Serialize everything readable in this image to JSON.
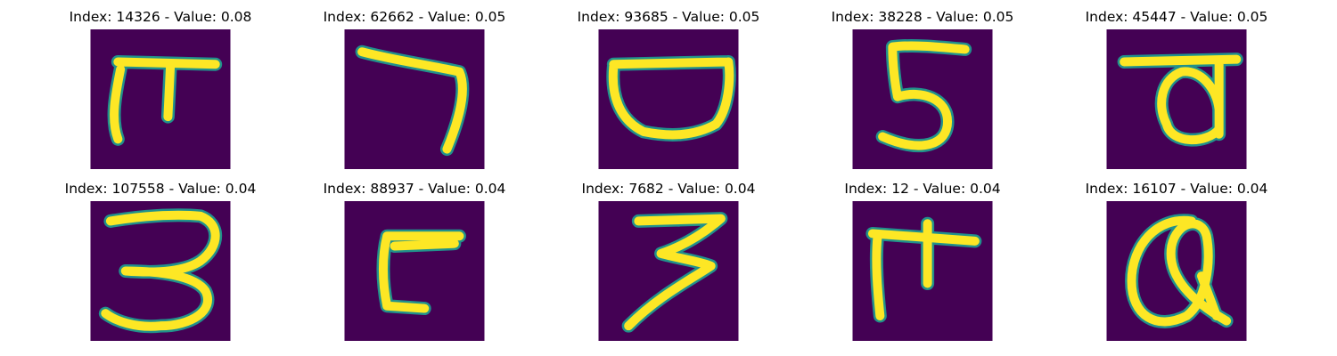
{
  "panels": [
    {
      "title": "Index: 14326 - Value: 0.08",
      "index": 14326,
      "value": 0.08,
      "glyph_icon": "handwritten-pa-glyph-icon"
    },
    {
      "title": "Index: 62662 - Value: 0.05",
      "index": 62662,
      "value": 0.05,
      "glyph_icon": "handwritten-seven-like-glyph-icon"
    },
    {
      "title": "Index: 93685 - Value: 0.05",
      "index": 93685,
      "value": 0.05,
      "glyph_icon": "handwritten-bowl-glyph-icon"
    },
    {
      "title": "Index: 38228 - Value: 0.05",
      "index": 38228,
      "value": 0.05,
      "glyph_icon": "handwritten-five-glyph-icon"
    },
    {
      "title": "Index: 45447 - Value: 0.05",
      "index": 45447,
      "value": 0.05,
      "glyph_icon": "handwritten-va-glyph-icon"
    },
    {
      "title": "Index: 107558 - Value: 0.04",
      "index": 107558,
      "value": 0.04,
      "glyph_icon": "handwritten-three-glyph-icon"
    },
    {
      "title": "Index: 88937 - Value: 0.04",
      "index": 88937,
      "value": 0.04,
      "glyph_icon": "handwritten-hook-glyph-icon"
    },
    {
      "title": "Index: 7682 - Value: 0.04",
      "index": 7682,
      "value": 0.04,
      "glyph_icon": "handwritten-three-zigzag-glyph-icon"
    },
    {
      "title": "Index: 12 - Value: 0.04",
      "index": 12,
      "value": 0.04,
      "glyph_icon": "handwritten-ma-glyph-icon"
    },
    {
      "title": "Index: 16107 - Value: 0.04",
      "index": 16107,
      "value": 0.04,
      "glyph_icon": "handwritten-at-sign-glyph-icon"
    }
  ],
  "colors": {
    "background": "#440154",
    "stroke_core": "#fde725",
    "stroke_edge": "#21918c",
    "page": "#ffffff",
    "text": "#000000"
  }
}
